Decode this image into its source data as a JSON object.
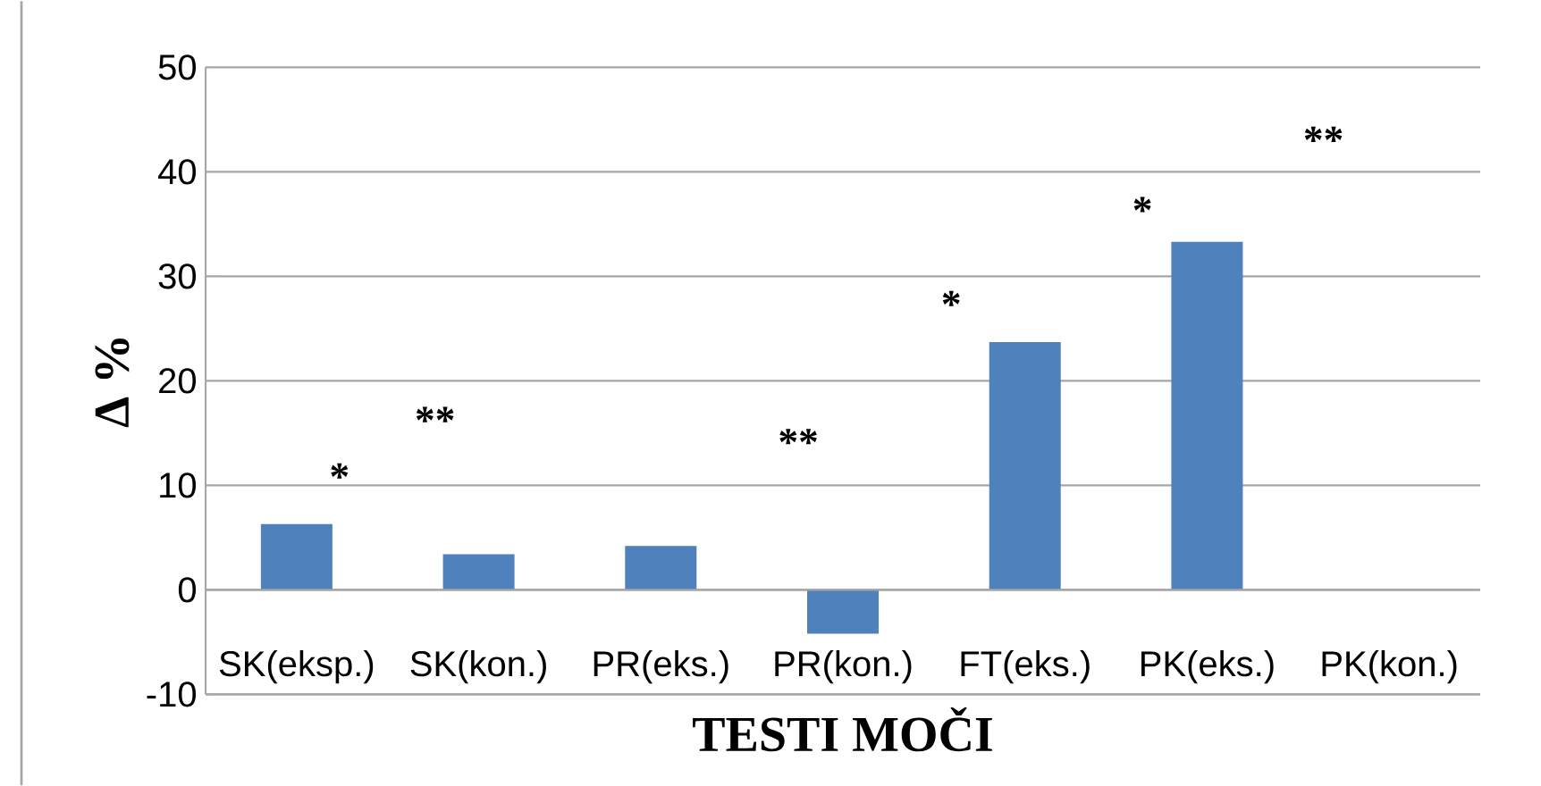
{
  "chart_data": {
    "type": "bar",
    "xlabel": "TESTI MOČI",
    "ylabel": "Δ %",
    "categories": [
      "SK(eksp.)",
      "SK(kon.)",
      "PR(eks.)",
      "PR(kon.)",
      "FT(eks.)",
      "PK(eks.)",
      "PK(kon.)"
    ],
    "values": [
      6.3,
      3.4,
      4.2,
      -4.2,
      23.7,
      33.3,
      0
    ],
    "color": "#4f81bd",
    "ylim": [
      -10,
      50
    ],
    "yticks": [
      -10,
      0,
      10,
      20,
      30,
      40,
      50
    ],
    "grid": "y",
    "annotations": [
      "*",
      "**",
      "**",
      "*",
      "*",
      "**"
    ]
  }
}
